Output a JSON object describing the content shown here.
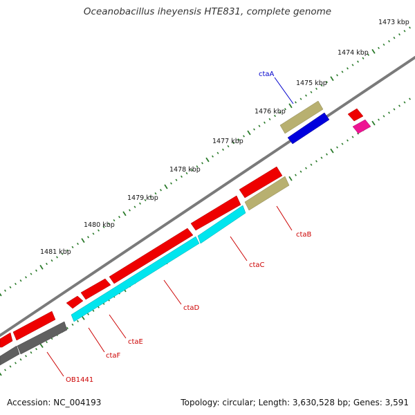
{
  "title": "Oceanobacillus iheyensis HTE831, complete genome",
  "footer": {
    "accession": "Accession: NC_004193",
    "stats": "Topology: circular; Length: 3,630,528 bp; Genes: 3,591"
  },
  "scale_labels": [
    "1473 kbp",
    "1474 kbp",
    "1475 kbp",
    "1476 kbp",
    "1477 kbp",
    "1478 kbp",
    "1479 kbp",
    "1480 kbp",
    "1481 kbp"
  ],
  "gene_labels": [
    "ctaA",
    "ctaB",
    "ctaC",
    "ctaD",
    "ctaE",
    "ctaF",
    "OB1441"
  ],
  "colors": {
    "backbone": "#7a7a7a",
    "scale_ticks": "#2a7a2a",
    "cds_forward": "#ee0000",
    "cds_reverse": "#ee0000",
    "cta_genes": "#00e5ee",
    "tan_gene": "#b8b070",
    "blue_gene": "#0000dd",
    "pink_gene": "#ee1493",
    "gray_gene": "#606060",
    "label_red": "#cc0000",
    "label_blue": "#0000cc"
  }
}
